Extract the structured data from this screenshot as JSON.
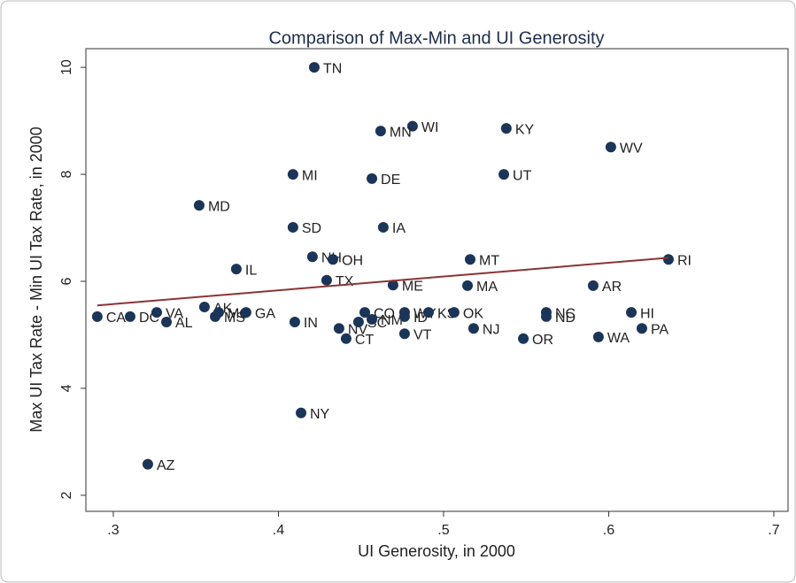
{
  "chart_data": {
    "type": "scatter",
    "title": "Comparison of Max-Min and UI Generosity",
    "x_label": "UI Generosity, in 2000",
    "y_label": "Max UI Tax Rate - Min UI Tax Rate, in 2000",
    "xlim": [
      0.2834,
      0.7086
    ],
    "ylim": [
      1.7,
      10.35
    ],
    "xticks": [
      {
        "value": 0.3,
        "label": ".3"
      },
      {
        "value": 0.4,
        "label": ".4"
      },
      {
        "value": 0.5,
        "label": ".5"
      },
      {
        "value": 0.6,
        "label": ".6"
      },
      {
        "value": 0.7,
        "label": ".7"
      }
    ],
    "yticks": [
      2,
      4,
      6,
      8,
      10
    ],
    "series": [
      {
        "name": "States",
        "color": "#1b3558",
        "labels": [
          "TN",
          "WI",
          "MN",
          "KY",
          "WV",
          "MI",
          "DE",
          "UT",
          "MD",
          "SD",
          "IA",
          "NH",
          "OH",
          "IL",
          "MT",
          "RI",
          "TX",
          "ME",
          "MA",
          "AR",
          "CA",
          "DC",
          "VA",
          "AL",
          "AK",
          "MS",
          "MO",
          "GA",
          "IN",
          "NV",
          "CT",
          "SC",
          "CO",
          "NM",
          "ID",
          "WY",
          "KS",
          "OK",
          "VT",
          "NJ",
          "OR",
          "NC",
          "ND",
          "HI",
          "PA",
          "WA",
          "NY",
          "AZ"
        ],
        "x": [
          0.4217,
          0.4812,
          0.4619,
          0.538,
          0.6013,
          0.4088,
          0.4566,
          0.5365,
          0.352,
          0.4088,
          0.4635,
          0.4206,
          0.433,
          0.3745,
          0.5161,
          0.6362,
          0.4292,
          0.4694,
          0.5145,
          0.5906,
          0.2903,
          0.3102,
          0.3263,
          0.3322,
          0.3552,
          0.3617,
          0.3638,
          0.3804,
          0.4099,
          0.4367,
          0.441,
          0.4485,
          0.4523,
          0.4566,
          0.4764,
          0.4764,
          0.4909,
          0.5064,
          0.4764,
          0.5182,
          0.5483,
          0.5622,
          0.5622,
          0.6137,
          0.6201,
          0.5938,
          0.4137,
          0.3209
        ],
        "values": [
          10.0,
          8.9,
          8.81,
          8.86,
          8.51,
          8.0,
          7.92,
          8.0,
          7.42,
          7.01,
          7.01,
          6.46,
          6.41,
          6.23,
          6.41,
          6.41,
          6.02,
          5.93,
          5.92,
          5.92,
          5.34,
          5.34,
          5.42,
          5.24,
          5.52,
          5.34,
          5.42,
          5.42,
          5.24,
          5.12,
          4.93,
          5.24,
          5.42,
          5.29,
          5.34,
          5.42,
          5.42,
          5.42,
          5.02,
          5.12,
          4.93,
          5.42,
          5.34,
          5.42,
          5.12,
          4.96,
          3.54,
          2.58
        ]
      }
    ],
    "fit_line": {
      "color": "#8b3434",
      "x": [
        0.2903,
        0.6362
      ],
      "values": [
        5.55,
        6.44
      ]
    }
  }
}
